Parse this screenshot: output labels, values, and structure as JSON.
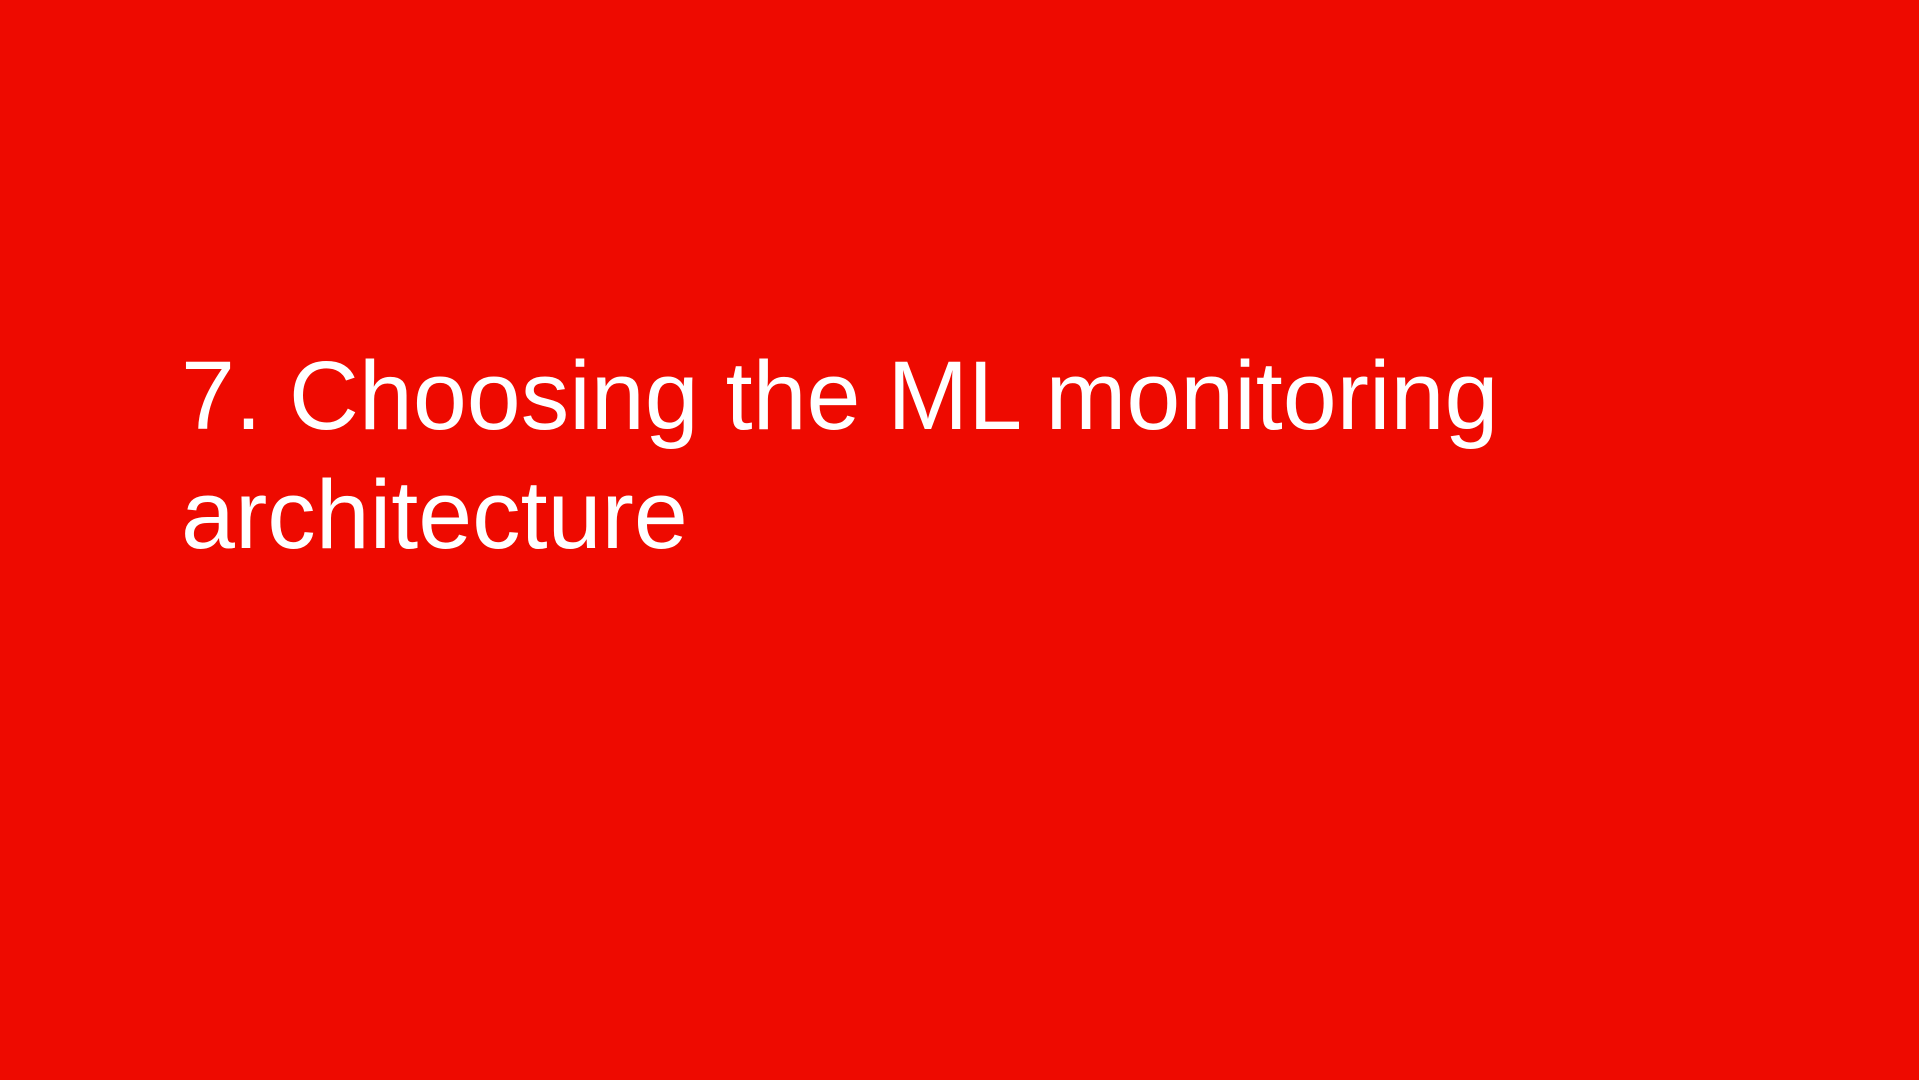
{
  "slide": {
    "background_color": "#ee0a00",
    "text_color": "#ffffff",
    "title_lines": [
      "7. Choosing the ML monitoring",
      "architecture"
    ]
  }
}
